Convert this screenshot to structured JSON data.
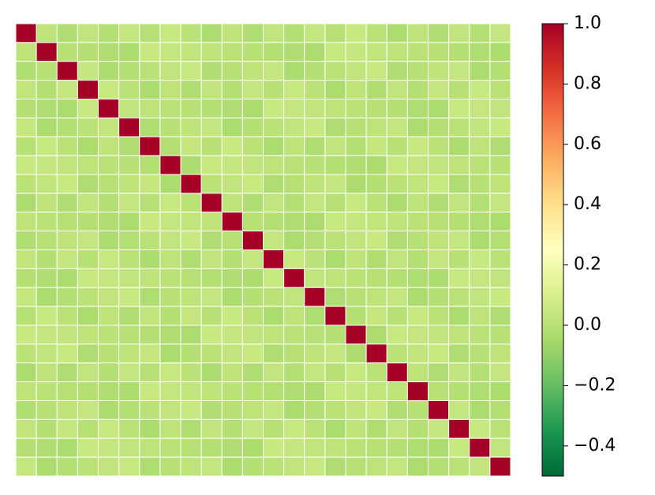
{
  "chart_data": {
    "type": "heatmap",
    "z": [
      [
        1,
        0.02,
        -0.02,
        0.03,
        -0.01,
        0.04,
        0,
        0.05,
        0.01,
        -0.03,
        0.02,
        -0.02,
        0.03,
        -0.01,
        0.04,
        0,
        0.05,
        0.01,
        -0.03,
        0.02,
        -0.02,
        0.03,
        -0.01,
        0.04
      ],
      [
        0.02,
        1,
        0,
        -0.01,
        -0.02,
        -0.03,
        0.05,
        0.04,
        0.03,
        0.02,
        0.01,
        0,
        -0.01,
        -0.02,
        -0.03,
        0.05,
        0.04,
        0.03,
        0.02,
        0.01,
        0,
        -0.01,
        -0.02,
        -0.03
      ],
      [
        -0.02,
        0,
        1,
        0.04,
        -0.03,
        -0.01,
        0.01,
        0.03,
        0.05,
        -0.02,
        0,
        0.02,
        0.04,
        -0.03,
        -0.01,
        0.01,
        0.03,
        0.05,
        -0.02,
        0,
        0.02,
        0.04,
        -0.03,
        -0.01
      ],
      [
        0.03,
        -0.01,
        0.04,
        1,
        0.05,
        0.01,
        -0.03,
        0.02,
        -0.02,
        0.03,
        -0.01,
        0.04,
        0,
        0.05,
        0.01,
        -0.03,
        0.02,
        -0.02,
        0.03,
        -0.01,
        0.04,
        0,
        0.05,
        0.01
      ],
      [
        -0.01,
        -0.02,
        -0.03,
        0.05,
        1,
        0.03,
        0.02,
        0.01,
        0,
        -0.01,
        -0.02,
        -0.03,
        0.05,
        0.04,
        0.03,
        0.02,
        0.01,
        0,
        -0.01,
        -0.02,
        -0.03,
        0.05,
        0.04,
        0.03
      ],
      [
        0.04,
        -0.03,
        -0.01,
        0.01,
        0.03,
        1,
        -0.02,
        0,
        0.02,
        0.04,
        -0.03,
        -0.01,
        0.01,
        0.03,
        0.05,
        -0.02,
        0,
        0.02,
        0.04,
        -0.03,
        -0.01,
        0.01,
        0.03,
        0.05
      ],
      [
        0,
        0.05,
        0.01,
        -0.03,
        0.02,
        -0.02,
        1,
        -0.01,
        0.04,
        0,
        0.05,
        0.01,
        -0.03,
        0.02,
        -0.02,
        0.03,
        -0.01,
        0.04,
        0,
        0.05,
        0.01,
        -0.03,
        0.02,
        -0.02
      ],
      [
        0.05,
        0.04,
        0.03,
        0.02,
        0.01,
        0,
        -0.01,
        1,
        -0.03,
        0.05,
        0.04,
        0.03,
        0.02,
        0.01,
        0,
        -0.01,
        -0.02,
        -0.03,
        0.05,
        0.04,
        0.03,
        0.02,
        0.01,
        0
      ],
      [
        0.01,
        0.03,
        0.05,
        -0.02,
        0,
        0.02,
        0.04,
        -0.03,
        1,
        0.01,
        0.03,
        0.05,
        -0.02,
        0,
        0.02,
        0.04,
        -0.03,
        -0.01,
        0.01,
        0.03,
        0.05,
        -0.02,
        0,
        0.02
      ],
      [
        -0.03,
        0.02,
        -0.02,
        0.03,
        -0.01,
        0.04,
        0,
        0.05,
        0.01,
        1,
        0.02,
        -0.02,
        0.03,
        -0.01,
        0.04,
        0,
        0.05,
        0.01,
        -0.03,
        0.02,
        -0.02,
        0.03,
        -0.01,
        0.04
      ],
      [
        0.02,
        0.01,
        0,
        -0.01,
        -0.02,
        -0.03,
        0.05,
        0.04,
        0.03,
        0.02,
        1,
        0,
        -0.01,
        -0.02,
        -0.03,
        0.05,
        0.04,
        0.03,
        0.02,
        0.01,
        0,
        -0.01,
        -0.02,
        -0.03
      ],
      [
        -0.02,
        0,
        0.02,
        0.04,
        -0.03,
        -0.01,
        0.01,
        0.03,
        0.05,
        -0.02,
        0,
        1,
        0.04,
        -0.03,
        -0.01,
        0.01,
        0.03,
        0.05,
        -0.02,
        0,
        0.02,
        0.04,
        -0.03,
        -0.01
      ],
      [
        0.03,
        -0.01,
        0.04,
        0,
        0.05,
        0.01,
        -0.03,
        0.02,
        -0.02,
        0.03,
        -0.01,
        0.04,
        1,
        0.05,
        0.01,
        -0.03,
        0.02,
        -0.02,
        0.03,
        -0.01,
        0.04,
        0,
        0.05,
        0.01
      ],
      [
        -0.01,
        -0.02,
        -0.03,
        0.05,
        0.04,
        0.03,
        0.02,
        0.01,
        0,
        -0.01,
        -0.02,
        -0.03,
        0.05,
        1,
        0.03,
        0.02,
        0.01,
        0,
        -0.01,
        -0.02,
        -0.03,
        0.05,
        0.04,
        0.03
      ],
      [
        0.04,
        -0.03,
        -0.01,
        0.01,
        0.03,
        0.05,
        -0.02,
        0,
        0.02,
        0.04,
        -0.03,
        -0.01,
        0.01,
        0.03,
        1,
        -0.02,
        0,
        0.02,
        0.04,
        -0.03,
        -0.01,
        0.01,
        0.03,
        0.05
      ],
      [
        0,
        0.05,
        0.01,
        -0.03,
        0.02,
        -0.02,
        0.03,
        -0.01,
        0.04,
        0,
        0.05,
        0.01,
        -0.03,
        0.02,
        -0.02,
        1,
        -0.01,
        0.04,
        0,
        0.05,
        0.01,
        -0.03,
        0.02,
        -0.02
      ],
      [
        0.05,
        0.04,
        0.03,
        0.02,
        0.01,
        0,
        -0.01,
        -0.02,
        -0.03,
        0.05,
        0.04,
        0.03,
        0.02,
        0.01,
        0,
        -0.01,
        1,
        -0.03,
        0.05,
        0.04,
        0.03,
        0.02,
        0.01,
        0
      ],
      [
        0.01,
        0.03,
        0.05,
        -0.02,
        0,
        0.02,
        0.04,
        -0.03,
        -0.01,
        0.01,
        0.03,
        0.05,
        -0.02,
        0,
        0.02,
        0.04,
        -0.03,
        1,
        0.01,
        0.03,
        0.05,
        -0.02,
        0,
        0.02
      ],
      [
        -0.03,
        0.02,
        -0.02,
        0.03,
        -0.01,
        0.04,
        0,
        0.05,
        0.01,
        -0.03,
        0.02,
        -0.02,
        0.03,
        -0.01,
        0.04,
        0,
        0.05,
        0.01,
        1,
        0.02,
        -0.02,
        0.03,
        -0.01,
        0.04
      ],
      [
        0.02,
        0.01,
        0,
        -0.01,
        -0.02,
        -0.03,
        0.05,
        0.04,
        0.03,
        0.02,
        0.01,
        0,
        -0.01,
        -0.02,
        -0.03,
        0.05,
        0.04,
        0.03,
        0.02,
        1,
        0,
        -0.01,
        -0.02,
        -0.03
      ],
      [
        -0.02,
        0,
        0.02,
        0.04,
        -0.03,
        -0.01,
        0.01,
        0.03,
        0.05,
        -0.02,
        0,
        0.02,
        0.04,
        -0.03,
        -0.01,
        0.01,
        0.03,
        0.05,
        -0.02,
        0,
        1,
        0.04,
        -0.03,
        -0.01
      ],
      [
        0.03,
        -0.01,
        0.04,
        0,
        0.05,
        0.01,
        -0.03,
        0.02,
        -0.02,
        0.03,
        -0.01,
        0.04,
        0,
        0.05,
        0.01,
        -0.03,
        0.02,
        -0.02,
        0.03,
        -0.01,
        0.04,
        1,
        0.05,
        0.01
      ],
      [
        -0.01,
        -0.02,
        -0.03,
        0.05,
        0.04,
        0.03,
        0.02,
        0.01,
        0,
        -0.01,
        -0.02,
        -0.03,
        0.05,
        0.04,
        0.03,
        0.02,
        0.01,
        0,
        -0.01,
        -0.02,
        -0.03,
        0.05,
        1,
        0.03
      ],
      [
        0.04,
        -0.03,
        -0.01,
        0.01,
        0.03,
        0.05,
        -0.02,
        0,
        0.02,
        0.04,
        -0.03,
        -0.01,
        0.01,
        0.03,
        0.05,
        -0.02,
        0,
        0.02,
        0.04,
        -0.03,
        -0.01,
        0.01,
        0.03,
        1
      ]
    ],
    "colorscale": [
      "#006837",
      "#1a9850",
      "#66bd63",
      "#a6d96a",
      "#d9ef8b",
      "#ffffbf",
      "#fee08b",
      "#fdae61",
      "#f46d43",
      "#d73027",
      "#a50026"
    ],
    "zlim": [
      -0.5,
      1.0
    ],
    "zticks": [
      {
        "value": -0.4,
        "label": "−0.4"
      },
      {
        "value": -0.2,
        "label": "−0.2"
      },
      {
        "value": 0,
        "label": "0.0"
      },
      0.2,
      0.4,
      0.6,
      0.8,
      {
        "value": 1.0,
        "label": "1.0"
      }
    ]
  }
}
